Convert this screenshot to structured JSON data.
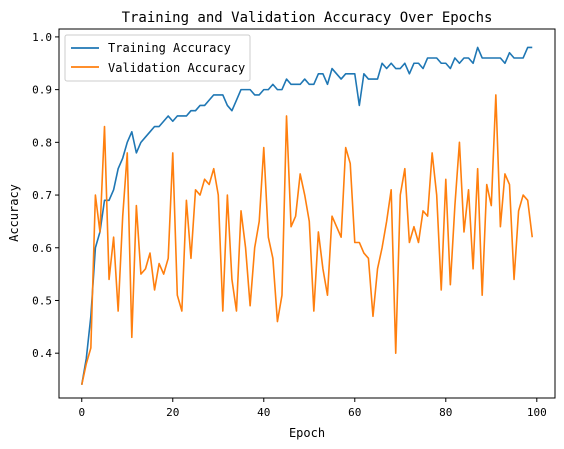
{
  "chart_data": {
    "type": "line",
    "title": "Training and Validation Accuracy Over Epochs",
    "xlabel": "Epoch",
    "ylabel": "Accuracy",
    "xlim": [
      -5,
      104
    ],
    "ylim": [
      0.315,
      1.015
    ],
    "xticks": [
      0,
      20,
      40,
      60,
      80,
      100
    ],
    "yticks": [
      0.4,
      0.5,
      0.6,
      0.7,
      0.8,
      0.9,
      1.0
    ],
    "xtick_labels": [
      "0",
      "20",
      "40",
      "60",
      "80",
      "100"
    ],
    "ytick_labels": [
      "0.4",
      "0.5",
      "0.6",
      "0.7",
      "0.8",
      "0.9",
      "1.0"
    ],
    "legend": "upper-left",
    "grid": false,
    "series": [
      {
        "name": "Training Accuracy",
        "color": "#1f77b4",
        "x": [
          0,
          1,
          2,
          3,
          4,
          5,
          6,
          7,
          8,
          9,
          10,
          11,
          12,
          13,
          14,
          15,
          16,
          17,
          18,
          19,
          20,
          21,
          22,
          23,
          24,
          25,
          26,
          27,
          28,
          29,
          30,
          31,
          32,
          33,
          34,
          35,
          36,
          37,
          38,
          39,
          40,
          41,
          42,
          43,
          44,
          45,
          46,
          47,
          48,
          49,
          50,
          51,
          52,
          53,
          54,
          55,
          56,
          57,
          58,
          59,
          60,
          61,
          62,
          63,
          64,
          65,
          66,
          67,
          68,
          69,
          70,
          71,
          72,
          73,
          74,
          75,
          76,
          77,
          78,
          79,
          80,
          81,
          82,
          83,
          84,
          85,
          86,
          87,
          88,
          89,
          90,
          91,
          92,
          93,
          94,
          95,
          96,
          97,
          98,
          99
        ],
        "values": [
          0.34,
          0.39,
          0.47,
          0.6,
          0.63,
          0.69,
          0.69,
          0.71,
          0.75,
          0.77,
          0.8,
          0.82,
          0.78,
          0.8,
          0.81,
          0.82,
          0.83,
          0.83,
          0.84,
          0.85,
          0.84,
          0.85,
          0.85,
          0.85,
          0.86,
          0.86,
          0.87,
          0.87,
          0.88,
          0.89,
          0.89,
          0.89,
          0.87,
          0.86,
          0.88,
          0.9,
          0.9,
          0.9,
          0.89,
          0.89,
          0.9,
          0.9,
          0.91,
          0.9,
          0.9,
          0.92,
          0.91,
          0.91,
          0.91,
          0.92,
          0.91,
          0.91,
          0.93,
          0.93,
          0.91,
          0.94,
          0.93,
          0.92,
          0.93,
          0.93,
          0.93,
          0.87,
          0.93,
          0.92,
          0.92,
          0.92,
          0.95,
          0.94,
          0.95,
          0.94,
          0.94,
          0.95,
          0.93,
          0.95,
          0.95,
          0.94,
          0.96,
          0.96,
          0.96,
          0.95,
          0.95,
          0.94,
          0.96,
          0.95,
          0.96,
          0.96,
          0.95,
          0.98,
          0.96,
          0.96,
          0.96,
          0.96,
          0.96,
          0.95,
          0.97,
          0.96,
          0.96,
          0.96,
          0.98,
          0.98
        ]
      },
      {
        "name": "Validation Accuracy",
        "color": "#ff7f0e",
        "x": [
          0,
          1,
          2,
          3,
          4,
          5,
          6,
          7,
          8,
          9,
          10,
          11,
          12,
          13,
          14,
          15,
          16,
          17,
          18,
          19,
          20,
          21,
          22,
          23,
          24,
          25,
          26,
          27,
          28,
          29,
          30,
          31,
          32,
          33,
          34,
          35,
          36,
          37,
          38,
          39,
          40,
          41,
          42,
          43,
          44,
          45,
          46,
          47,
          48,
          49,
          50,
          51,
          52,
          53,
          54,
          55,
          56,
          57,
          58,
          59,
          60,
          61,
          62,
          63,
          64,
          65,
          66,
          67,
          68,
          69,
          70,
          71,
          72,
          73,
          74,
          75,
          76,
          77,
          78,
          79,
          80,
          81,
          82,
          83,
          84,
          85,
          86,
          87,
          88,
          89,
          90,
          91,
          92,
          93,
          94,
          95,
          96,
          97,
          98,
          99
        ],
        "values": [
          0.34,
          0.38,
          0.41,
          0.7,
          0.63,
          0.83,
          0.54,
          0.62,
          0.48,
          0.66,
          0.78,
          0.43,
          0.68,
          0.55,
          0.56,
          0.59,
          0.52,
          0.57,
          0.55,
          0.58,
          0.78,
          0.51,
          0.48,
          0.69,
          0.58,
          0.71,
          0.7,
          0.73,
          0.72,
          0.75,
          0.7,
          0.48,
          0.7,
          0.54,
          0.48,
          0.67,
          0.6,
          0.49,
          0.6,
          0.65,
          0.79,
          0.62,
          0.58,
          0.46,
          0.51,
          0.85,
          0.64,
          0.66,
          0.74,
          0.7,
          0.65,
          0.48,
          0.63,
          0.56,
          0.51,
          0.66,
          0.64,
          0.62,
          0.79,
          0.76,
          0.61,
          0.61,
          0.59,
          0.58,
          0.47,
          0.56,
          0.6,
          0.65,
          0.71,
          0.4,
          0.7,
          0.75,
          0.61,
          0.64,
          0.61,
          0.67,
          0.66,
          0.78,
          0.7,
          0.52,
          0.73,
          0.53,
          0.68,
          0.8,
          0.63,
          0.71,
          0.56,
          0.75,
          0.51,
          0.72,
          0.68,
          0.89,
          0.64,
          0.74,
          0.72,
          0.54,
          0.67,
          0.7,
          0.69,
          0.62
        ]
      }
    ]
  }
}
